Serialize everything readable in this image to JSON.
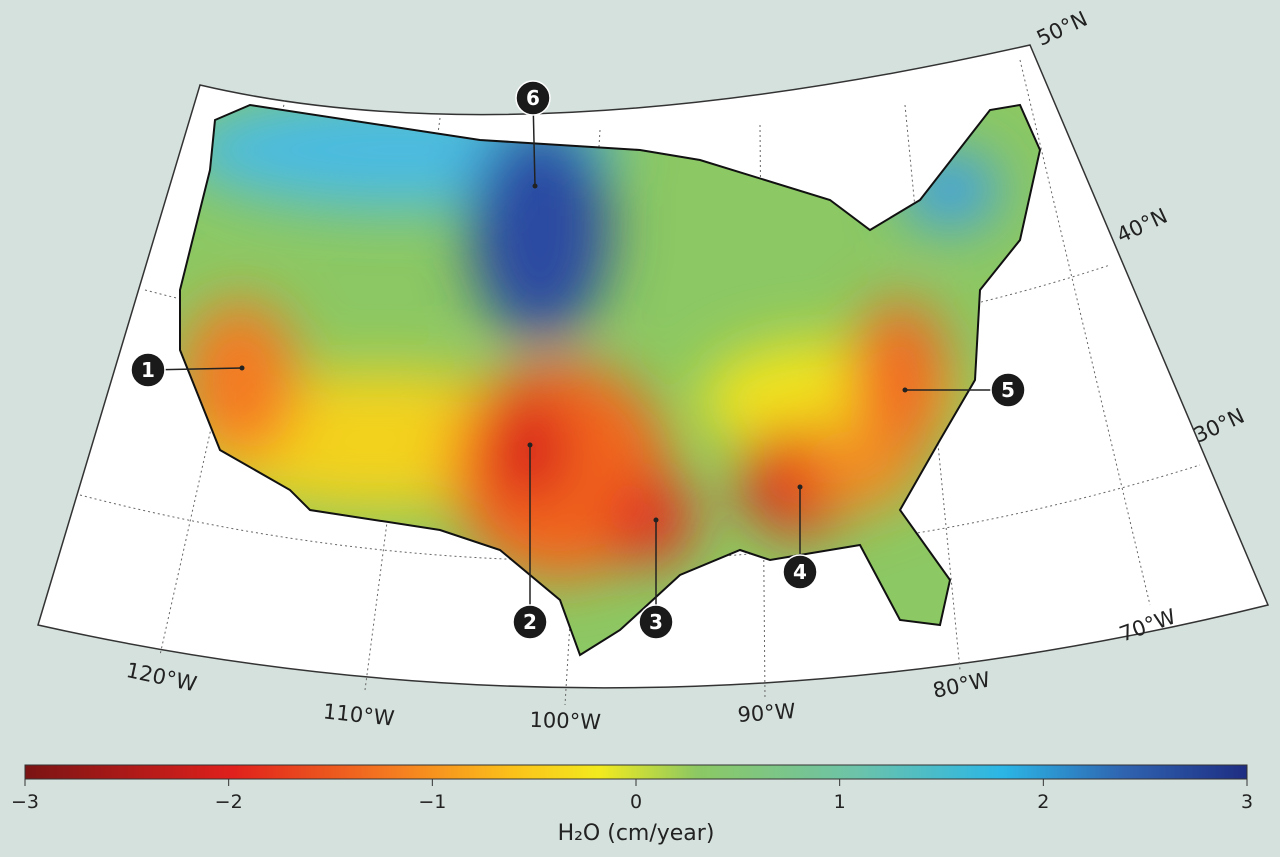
{
  "map": {
    "latitude_labels": [
      "50°N",
      "40°N",
      "30°N"
    ],
    "longitude_labels": [
      "70°W",
      "80°W",
      "90°W",
      "100°W",
      "110°W",
      "120°W"
    ],
    "markers": [
      "1",
      "2",
      "3",
      "4",
      "5",
      "6"
    ]
  },
  "colorbar": {
    "lim": [
      -3,
      3
    ],
    "ticks": [
      {
        "value": -3,
        "label": "−3"
      },
      {
        "value": -2,
        "label": "−2"
      },
      {
        "value": -1,
        "label": "−1"
      },
      0,
      1,
      2,
      3
    ],
    "label": "H₂O (cm/year)"
  }
}
